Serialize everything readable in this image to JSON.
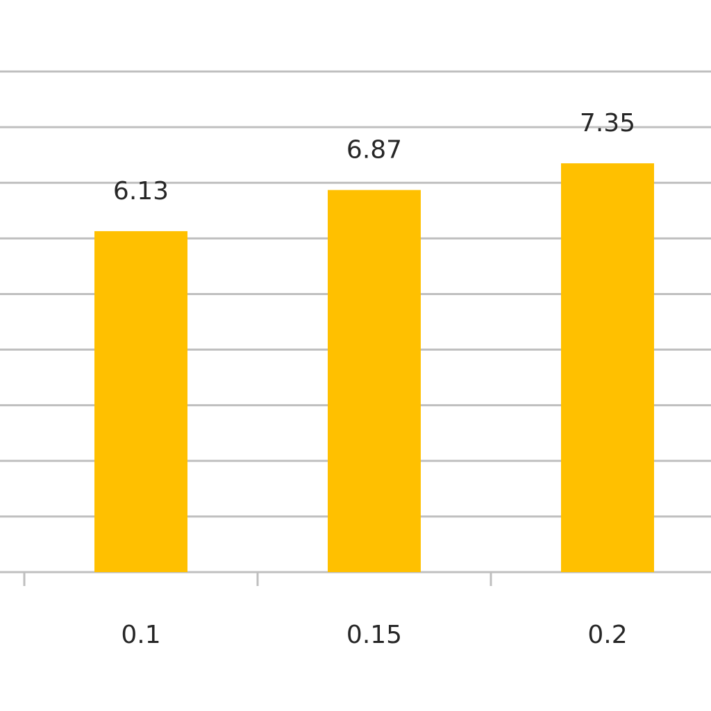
{
  "chart_data": {
    "type": "bar",
    "categories": [
      "0.1",
      "0.15",
      "0.2"
    ],
    "values": [
      6.13,
      6.87,
      7.35
    ],
    "color": "#FFC000",
    "ylim": [
      0,
      9
    ],
    "yticks": [
      0,
      1,
      2,
      3,
      4,
      5,
      6,
      7,
      8,
      9
    ],
    "grid": true
  }
}
